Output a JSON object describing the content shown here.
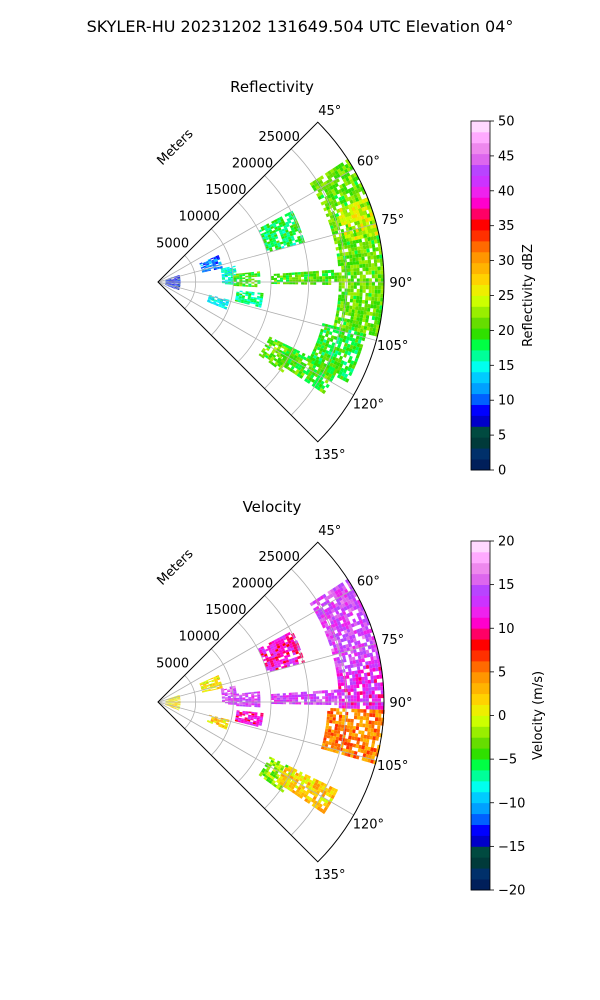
{
  "figure": {
    "suptitle": "SKYLER-HU  20231202  131649.504 UTC Elevation 04°"
  },
  "chart_data": [
    {
      "type": "heatmap",
      "subtype": "polar-sector",
      "title": "Reflectivity",
      "radial_axis_label": "Meters",
      "radial_ticks": [
        "5000",
        "10000",
        "15000",
        "20000",
        "25000"
      ],
      "radial_tick_values": [
        5000,
        10000,
        15000,
        20000,
        25000
      ],
      "radial_range": [
        0,
        30000
      ],
      "angular_range_deg": [
        45,
        135
      ],
      "angular_ticks": [
        "45°",
        "60°",
        "75°",
        "90°",
        "105°",
        "120°",
        "135°"
      ],
      "angular_tick_values": [
        45,
        60,
        75,
        90,
        105,
        120,
        135
      ],
      "grid": true,
      "colorbar": {
        "label": "Reflectivity dBZ",
        "range": [
          0,
          50
        ],
        "ticks": [
          "0",
          "5",
          "10",
          "15",
          "20",
          "25",
          "30",
          "35",
          "40",
          "45",
          "50"
        ],
        "colors": [
          "#001f5a",
          "#00306a",
          "#003a3a",
          "#004a40",
          "#0000c8",
          "#0000ff",
          "#0060ff",
          "#00a0ff",
          "#00ccff",
          "#00ffee",
          "#00ff99",
          "#00ff44",
          "#30e000",
          "#66dd00",
          "#99ee00",
          "#ccff00",
          "#eeee00",
          "#ffd200",
          "#ffb400",
          "#ff9600",
          "#ff6a00",
          "#ff3000",
          "#ff0000",
          "#ff0066",
          "#ff00cc",
          "#ee22ee",
          "#cc33ff",
          "#b844ff",
          "#dd66ee",
          "#ee88ee",
          "#ffaaff",
          "#ffd8ff"
        ]
      },
      "echo_regions": [
        {
          "r": [
            1000,
            3000
          ],
          "theta": [
            72,
            112
          ],
          "value": 8
        },
        {
          "r": [
            6000,
            8500
          ],
          "theta": [
            66,
            78
          ],
          "value": 11
        },
        {
          "r": [
            8500,
            10500
          ],
          "theta": [
            78,
            92
          ],
          "value": 15
        },
        {
          "r": [
            10000,
            13500
          ],
          "theta": [
            84,
            93
          ],
          "value": 20
        },
        {
          "r": [
            10500,
            14000
          ],
          "theta": [
            96,
            104
          ],
          "value": 17
        },
        {
          "r": [
            7000,
            9500
          ],
          "theta": [
            104,
            112
          ],
          "value": 14
        },
        {
          "r": [
            15000,
            20000
          ],
          "theta": [
            62,
            75
          ],
          "value": 18
        },
        {
          "r": [
            15000,
            24000
          ],
          "theta": [
            86,
            91
          ],
          "value": 20
        },
        {
          "r": [
            16500,
            20500
          ],
          "theta": [
            116,
            126
          ],
          "value": 21
        },
        {
          "r": [
            24000,
            29800
          ],
          "theta": [
            57,
            104
          ],
          "value": 21
        },
        {
          "r": [
            25500,
            29800
          ],
          "theta": [
            68,
            78
          ],
          "value": 25
        },
        {
          "r": [
            22500,
            28500
          ],
          "theta": [
            104,
            118
          ],
          "value": 19
        },
        {
          "r": [
            19000,
            26500
          ],
          "theta": [
            116,
            124
          ],
          "value": 20
        }
      ]
    },
    {
      "type": "heatmap",
      "subtype": "polar-sector",
      "title": "Velocity",
      "radial_axis_label": "Meters",
      "radial_ticks": [
        "5000",
        "10000",
        "15000",
        "20000",
        "25000"
      ],
      "radial_tick_values": [
        5000,
        10000,
        15000,
        20000,
        25000
      ],
      "radial_range": [
        0,
        30000
      ],
      "angular_range_deg": [
        45,
        135
      ],
      "angular_ticks": [
        "45°",
        "60°",
        "75°",
        "90°",
        "105°",
        "120°",
        "135°"
      ],
      "angular_tick_values": [
        45,
        60,
        75,
        90,
        105,
        120,
        135
      ],
      "grid": true,
      "colorbar": {
        "label": "Velocity (m/s)",
        "range": [
          -20,
          20
        ],
        "ticks": [
          "−20",
          "−15",
          "−10",
          "−5",
          "0",
          "5",
          "10",
          "15",
          "20"
        ],
        "colors": [
          "#001f5a",
          "#00306a",
          "#003a3a",
          "#004a40",
          "#0000c8",
          "#0000ff",
          "#0060ff",
          "#00a0ff",
          "#00ccff",
          "#00ffee",
          "#00ff99",
          "#00ff44",
          "#30e000",
          "#66dd00",
          "#99ee00",
          "#ccff00",
          "#eeee00",
          "#ffd200",
          "#ffb400",
          "#ff9600",
          "#ff6a00",
          "#ff3000",
          "#ff0000",
          "#ff0066",
          "#ff00cc",
          "#ee22ee",
          "#cc33ff",
          "#b844ff",
          "#dd66ee",
          "#ee88ee",
          "#ffaaff",
          "#ffd8ff"
        ]
      },
      "echo_regions": [
        {
          "r": [
            1000,
            3000
          ],
          "theta": [
            72,
            112
          ],
          "value": 1
        },
        {
          "r": [
            6000,
            8500
          ],
          "theta": [
            66,
            78
          ],
          "value": 1
        },
        {
          "r": [
            8500,
            10500
          ],
          "theta": [
            78,
            92
          ],
          "value": 14
        },
        {
          "r": [
            10000,
            13500
          ],
          "theta": [
            84,
            93
          ],
          "value": 14
        },
        {
          "r": [
            10500,
            14000
          ],
          "theta": [
            96,
            104
          ],
          "value": 11
        },
        {
          "r": [
            7000,
            9500
          ],
          "theta": [
            104,
            112
          ],
          "value": 2
        },
        {
          "r": [
            15000,
            20000
          ],
          "theta": [
            62,
            75
          ],
          "value": 11
        },
        {
          "r": [
            15000,
            24000
          ],
          "theta": [
            86,
            91
          ],
          "value": 14
        },
        {
          "r": [
            16500,
            20500
          ],
          "theta": [
            116,
            126
          ],
          "value": -2
        },
        {
          "r": [
            24000,
            29800
          ],
          "theta": [
            57,
            80
          ],
          "value": 14
        },
        {
          "r": [
            24000,
            29800
          ],
          "theta": [
            80,
            92
          ],
          "value": 12
        },
        {
          "r": [
            22500,
            29800
          ],
          "theta": [
            92,
            106
          ],
          "value": 5
        },
        {
          "r": [
            19000,
            26500
          ],
          "theta": [
            116,
            124
          ],
          "value": 2
        }
      ]
    }
  ]
}
